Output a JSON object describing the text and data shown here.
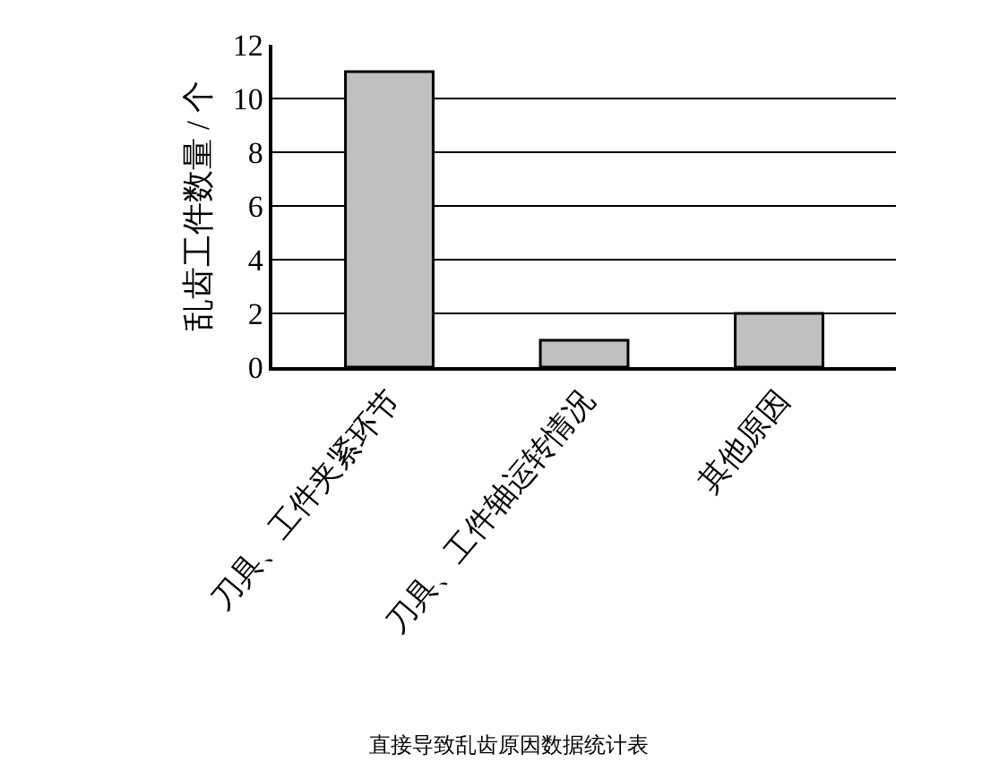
{
  "chart_data": {
    "type": "bar",
    "ylabel": "乱齿工件数量 / 个",
    "categories": [
      "刀具、工件夹紧环节",
      "刀具、工件轴运转情况",
      "其他原因"
    ],
    "values": [
      11,
      1,
      2
    ],
    "color": "#c0c0c0",
    "ylim": [
      0,
      12
    ],
    "yticks": [
      0,
      2,
      4,
      6,
      8,
      10,
      12
    ],
    "grid": "y",
    "annotations": [
      "直接导致乱齿原因数据统计表"
    ]
  }
}
